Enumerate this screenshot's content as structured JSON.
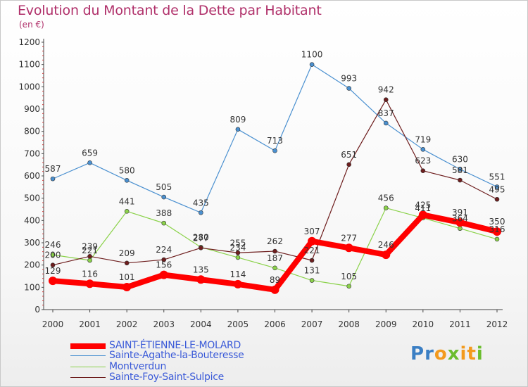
{
  "header": {
    "title": "Evolution du Montant de la Dette par Habitant",
    "subtitle": "(en €)"
  },
  "brand": {
    "text": "Proxiti",
    "colors": [
      "#3b7fc4",
      "#f39a1d",
      "#6bbd2e"
    ]
  },
  "chart_data": {
    "type": "line",
    "title": "Evolution du Montant de la Dette par Habitant",
    "subtitle": "(en €)",
    "x": [
      "2000",
      "2001",
      "2002",
      "2003",
      "2004",
      "2005",
      "2006",
      "2007",
      "2008",
      "2009",
      "2010",
      "2011",
      "2012"
    ],
    "ylim": [
      0,
      1200
    ],
    "yticks": [
      "0",
      "100",
      "200",
      "300",
      "400",
      "500",
      "600",
      "700",
      "800",
      "900",
      "1000",
      "1100",
      "1200"
    ],
    "grid": false,
    "legend_position": "bottom-left",
    "series": [
      {
        "name": "SAINT-ÉTIENNE-LE-MOLARD",
        "color": "#ff0000",
        "values": [
          129,
          116,
          101,
          156,
          135,
          114,
          89,
          307,
          277,
          246,
          425,
          391,
          350
        ],
        "labels": [
          "129",
          "116",
          "101",
          "156",
          "135",
          "114",
          "89",
          "307",
          "277",
          "246",
          "425",
          "391",
          "350"
        ]
      },
      {
        "name": "Sainte-Agathe-la-Bouteresse",
        "color": "#4a90d0",
        "values": [
          587,
          659,
          580,
          505,
          435,
          809,
          713,
          1100,
          993,
          837,
          719,
          630,
          551
        ],
        "labels": [
          "587",
          "659",
          "580",
          "505",
          "435",
          "809",
          "713",
          "1100",
          "993",
          "837",
          "719",
          "630",
          "551"
        ]
      },
      {
        "name": "Montverdun",
        "color": "#8bd24a",
        "values": [
          246,
          221,
          441,
          388,
          280,
          234,
          187,
          131,
          105,
          456,
          411,
          364,
          316
        ],
        "labels": [
          "246",
          "221",
          "441",
          "388",
          "280",
          "234",
          "187",
          "131",
          "105",
          "456",
          "411",
          "364",
          "316"
        ]
      },
      {
        "name": "Sainte-Foy-Saint-Sulpice",
        "color": "#6e1e1e",
        "values": [
          200,
          239,
          209,
          224,
          277,
          255,
          262,
          221,
          651,
          942,
          623,
          581,
          495
        ],
        "labels": [
          "200",
          "239",
          "209",
          "224",
          "277",
          "255",
          "262",
          "221",
          "651",
          "942",
          "623",
          "581",
          "495"
        ]
      }
    ]
  }
}
